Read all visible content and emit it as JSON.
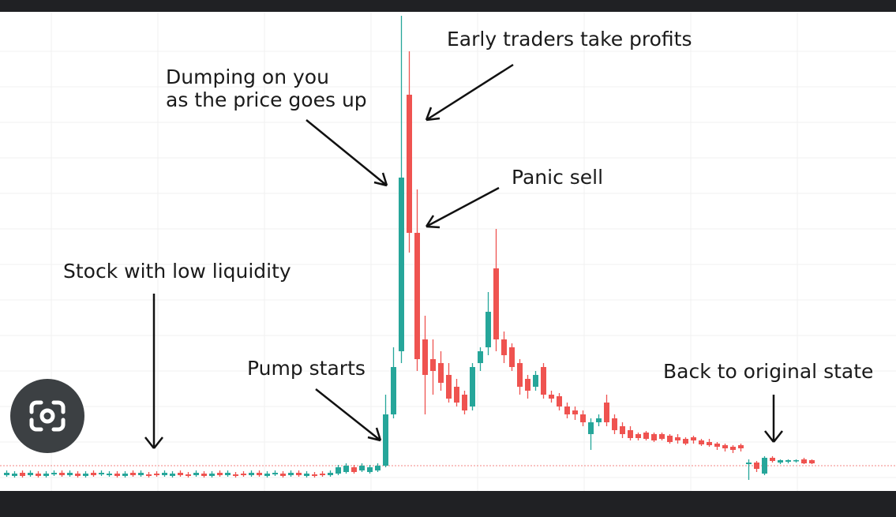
{
  "chart_data": {
    "type": "candlestick",
    "ylim": [
      0,
      600
    ],
    "up_color": "#26a69a",
    "down_color": "#ef5350",
    "reference_line": 30,
    "reference_color": "#ef5350",
    "open": [
      18,
      17,
      21,
      18,
      20,
      17,
      19,
      21,
      18,
      20,
      17,
      21,
      19,
      18,
      20,
      17,
      21,
      18,
      19,
      20,
      18,
      17,
      21,
      19,
      18,
      20,
      17,
      21,
      18,
      19,
      20,
      18,
      21,
      17,
      19,
      20,
      18,
      21,
      17,
      19,
      20,
      18,
      20,
      22,
      28,
      24,
      22,
      24,
      30,
      95,
      175,
      500,
      325,
      190,
      165,
      160,
      145,
      130,
      120,
      105,
      160,
      180,
      280,
      190,
      180,
      160,
      140,
      130,
      155,
      120,
      118,
      105,
      100,
      95,
      70,
      85,
      110,
      90,
      80,
      75,
      70,
      72,
      70,
      70,
      68,
      66,
      64,
      66,
      62,
      60,
      58,
      56,
      54,
      56,
      32,
      34,
      20,
      40,
      34,
      35,
      36,
      38,
      37
    ],
    "high": [
      24,
      23,
      24,
      24,
      23,
      23,
      24,
      24,
      24,
      23,
      23,
      24,
      24,
      23,
      23,
      23,
      24,
      24,
      22,
      23,
      24,
      23,
      24,
      22,
      24,
      23,
      23,
      24,
      24,
      22,
      23,
      24,
      24,
      23,
      24,
      23,
      24,
      24,
      23,
      22,
      23,
      24,
      31,
      33,
      31,
      33,
      31,
      33,
      120,
      180,
      600,
      555,
      380,
      220,
      190,
      175,
      160,
      140,
      125,
      160,
      180,
      250,
      330,
      200,
      185,
      165,
      145,
      150,
      160,
      125,
      122,
      110,
      105,
      100,
      90,
      95,
      120,
      95,
      85,
      80,
      72,
      74,
      72,
      72,
      70,
      70,
      66,
      68,
      64,
      64,
      60,
      58,
      56,
      58,
      38,
      36,
      42,
      42,
      38,
      38,
      38,
      40,
      38
    ],
    "low": [
      16,
      15,
      15,
      16,
      15,
      15,
      17,
      16,
      16,
      15,
      15,
      16,
      17,
      16,
      15,
      15,
      16,
      16,
      15,
      16,
      16,
      15,
      16,
      15,
      16,
      15,
      15,
      16,
      16,
      15,
      16,
      16,
      16,
      15,
      17,
      15,
      16,
      16,
      15,
      15,
      16,
      16,
      18,
      20,
      20,
      22,
      20,
      22,
      28,
      90,
      160,
      300,
      150,
      95,
      120,
      125,
      110,
      105,
      95,
      100,
      150,
      170,
      175,
      160,
      150,
      120,
      115,
      125,
      115,
      110,
      100,
      90,
      88,
      80,
      50,
      80,
      80,
      70,
      65,
      62,
      62,
      62,
      60,
      62,
      58,
      58,
      56,
      58,
      55,
      54,
      50,
      48,
      46,
      48,
      12,
      22,
      18,
      34,
      32,
      33,
      34,
      32,
      32
    ],
    "close": [
      21,
      20,
      17,
      21,
      17,
      20,
      21,
      18,
      21,
      17,
      20,
      18,
      21,
      20,
      17,
      20,
      18,
      21,
      17,
      18,
      21,
      20,
      18,
      17,
      21,
      17,
      20,
      18,
      21,
      17,
      18,
      21,
      18,
      20,
      21,
      17,
      21,
      18,
      20,
      17,
      18,
      21,
      28,
      30,
      22,
      30,
      28,
      30,
      95,
      155,
      395,
      325,
      165,
      145,
      150,
      135,
      115,
      110,
      100,
      155,
      175,
      225,
      190,
      170,
      155,
      130,
      125,
      145,
      120,
      115,
      105,
      95,
      95,
      85,
      85,
      90,
      85,
      75,
      70,
      65,
      65,
      64,
      62,
      64,
      60,
      62,
      58,
      62,
      57,
      56,
      54,
      52,
      50,
      52,
      34,
      26,
      40,
      36,
      37,
      37,
      37,
      33,
      33
    ],
    "annotations": [
      {
        "text": [
          "Early traders take profits"
        ]
      },
      {
        "text": [
          "Dumping on you",
          "as the price goes up"
        ]
      },
      {
        "text": [
          "Panic sell"
        ]
      },
      {
        "text": [
          "Stock with low liquidity"
        ]
      },
      {
        "text": [
          "Pump starts"
        ]
      },
      {
        "text": [
          "Back to original state"
        ]
      }
    ]
  }
}
